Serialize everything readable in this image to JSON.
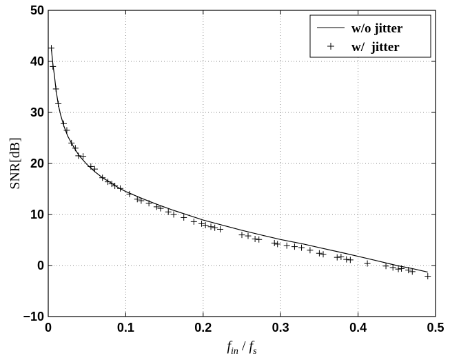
{
  "chart_data": {
    "type": "line",
    "xlabel_main": "f",
    "xlabel_sub1": "in",
    "xlabel_sep": " / ",
    "xlabel_sub2": "s",
    "ylabel": "SNR[dB]",
    "xlim": [
      0,
      0.5
    ],
    "ylim": [
      -10,
      50
    ],
    "x_ticks": [
      0,
      0.1,
      0.2,
      0.3,
      0.4,
      0.5
    ],
    "x_tick_labels": [
      "0",
      "0.1",
      "0.2",
      "0.3",
      "0.4",
      "0.5"
    ],
    "y_ticks": [
      -10,
      0,
      10,
      20,
      30,
      40,
      50
    ],
    "y_tick_labels": [
      "−10",
      "0",
      "10",
      "20",
      "30",
      "40",
      "50"
    ],
    "grid": true,
    "legend_position": "top-right",
    "series": [
      {
        "name": "w/o jitter",
        "style": "solid-line",
        "x": [
          0.004,
          0.006,
          0.008,
          0.01,
          0.013,
          0.016,
          0.02,
          0.025,
          0.03,
          0.035,
          0.04,
          0.05,
          0.06,
          0.07,
          0.08,
          0.09,
          0.1,
          0.12,
          0.14,
          0.16,
          0.18,
          0.2,
          0.22,
          0.25,
          0.28,
          0.3,
          0.33,
          0.35,
          0.38,
          0.4,
          0.42,
          0.45,
          0.47,
          0.49
        ],
        "y": [
          42.5,
          39.5,
          37.2,
          34.5,
          31.5,
          29.5,
          27.4,
          25.4,
          24.0,
          22.7,
          21.5,
          19.8,
          18.4,
          17.2,
          16.3,
          15.3,
          14.5,
          13.2,
          12.0,
          10.9,
          9.9,
          8.9,
          8.1,
          6.9,
          5.8,
          5.1,
          4.2,
          3.5,
          2.5,
          1.8,
          1.1,
          0.0,
          -0.6,
          -1.3
        ]
      },
      {
        "name": "w/  jitter",
        "style": "plus-markers",
        "x": [
          0.004,
          0.006,
          0.01,
          0.013,
          0.02,
          0.024,
          0.03,
          0.035,
          0.039,
          0.045,
          0.055,
          0.06,
          0.07,
          0.077,
          0.082,
          0.086,
          0.093,
          0.105,
          0.115,
          0.12,
          0.13,
          0.14,
          0.145,
          0.155,
          0.162,
          0.175,
          0.188,
          0.198,
          0.203,
          0.21,
          0.215,
          0.222,
          0.25,
          0.258,
          0.267,
          0.272,
          0.292,
          0.296,
          0.308,
          0.318,
          0.327,
          0.338,
          0.35,
          0.355,
          0.373,
          0.378,
          0.385,
          0.39,
          0.412,
          0.436,
          0.445,
          0.452,
          0.456,
          0.465,
          0.47,
          0.49
        ],
        "y": [
          42.6,
          39.0,
          34.6,
          31.7,
          27.8,
          26.5,
          24.0,
          23.0,
          21.5,
          21.4,
          19.4,
          18.9,
          17.2,
          16.4,
          16.0,
          15.6,
          15.1,
          14.0,
          13.0,
          12.7,
          12.2,
          11.5,
          11.2,
          10.5,
          10.0,
          9.4,
          8.6,
          8.2,
          7.9,
          7.6,
          7.4,
          7.1,
          6.0,
          5.8,
          5.2,
          5.1,
          4.4,
          4.2,
          3.9,
          3.7,
          3.5,
          3.0,
          2.4,
          2.2,
          1.6,
          1.7,
          1.2,
          1.1,
          0.4,
          -0.1,
          -0.4,
          -0.7,
          -0.6,
          -0.9,
          -1.2,
          -2.1
        ]
      }
    ]
  }
}
